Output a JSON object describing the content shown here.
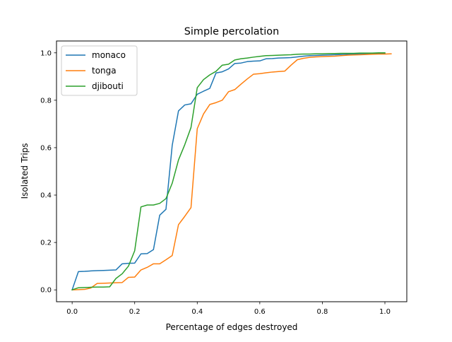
{
  "chart_data": {
    "type": "line",
    "title": "Simple percolation",
    "xlabel": "Percentage of edges destroyed",
    "ylabel": "Isolated Trips",
    "xlim": [
      -0.05,
      1.07
    ],
    "ylim": [
      -0.05,
      1.05
    ],
    "xticks": [
      0.0,
      0.2,
      0.4,
      0.6,
      0.8,
      1.0
    ],
    "xtick_labels": [
      "0.0",
      "0.2",
      "0.4",
      "0.6",
      "0.8",
      "1.0"
    ],
    "yticks": [
      0.0,
      0.2,
      0.4,
      0.6,
      0.8,
      1.0
    ],
    "ytick_labels": [
      "0.0",
      "0.2",
      "0.4",
      "0.6",
      "0.8",
      "1.0"
    ],
    "grid": false,
    "legend_position": "upper-left",
    "series": [
      {
        "name": "monaco",
        "color": "#1f77b4",
        "x": [
          0.0,
          0.02,
          0.04,
          0.06,
          0.08,
          0.1,
          0.12,
          0.14,
          0.16,
          0.18,
          0.2,
          0.22,
          0.24,
          0.26,
          0.28,
          0.3,
          0.32,
          0.34,
          0.36,
          0.38,
          0.4,
          0.42,
          0.44,
          0.46,
          0.48,
          0.5,
          0.52,
          0.54,
          0.56,
          0.58,
          0.6,
          0.62,
          0.64,
          0.66,
          0.68,
          0.7,
          0.72,
          0.74,
          0.76,
          0.78,
          0.8,
          0.82,
          0.84,
          0.86,
          0.88,
          0.9,
          0.92,
          0.94,
          0.96,
          0.98,
          1.0
        ],
        "y": [
          0.0,
          0.077,
          0.078,
          0.08,
          0.081,
          0.082,
          0.083,
          0.084,
          0.11,
          0.112,
          0.113,
          0.152,
          0.153,
          0.17,
          0.315,
          0.34,
          0.61,
          0.755,
          0.78,
          0.785,
          0.825,
          0.838,
          0.85,
          0.915,
          0.92,
          0.932,
          0.955,
          0.957,
          0.963,
          0.965,
          0.966,
          0.975,
          0.976,
          0.978,
          0.979,
          0.98,
          0.983,
          0.986,
          0.988,
          0.989,
          0.99,
          0.991,
          0.992,
          0.993,
          0.994,
          0.995,
          0.996,
          0.996,
          0.997,
          0.998,
          0.998
        ]
      },
      {
        "name": "tonga",
        "color": "#ff7f0e",
        "x": [
          0.0,
          0.02,
          0.04,
          0.06,
          0.08,
          0.1,
          0.12,
          0.14,
          0.16,
          0.18,
          0.2,
          0.22,
          0.24,
          0.26,
          0.28,
          0.3,
          0.32,
          0.34,
          0.36,
          0.38,
          0.4,
          0.42,
          0.44,
          0.46,
          0.48,
          0.5,
          0.52,
          0.54,
          0.56,
          0.58,
          0.6,
          0.62,
          0.64,
          0.66,
          0.68,
          0.7,
          0.72,
          0.74,
          0.76,
          0.78,
          0.8,
          0.82,
          0.84,
          0.86,
          0.88,
          0.9,
          0.92,
          0.94,
          0.96,
          0.98,
          1.0,
          1.02
        ],
        "y": [
          0.0,
          0.001,
          0.002,
          0.008,
          0.027,
          0.028,
          0.029,
          0.03,
          0.031,
          0.053,
          0.054,
          0.084,
          0.095,
          0.11,
          0.11,
          0.127,
          0.145,
          0.275,
          0.31,
          0.347,
          0.68,
          0.742,
          0.782,
          0.79,
          0.8,
          0.836,
          0.845,
          0.868,
          0.89,
          0.91,
          0.912,
          0.916,
          0.919,
          0.921,
          0.923,
          0.948,
          0.971,
          0.977,
          0.981,
          0.983,
          0.984,
          0.985,
          0.986,
          0.988,
          0.99,
          0.991,
          0.992,
          0.993,
          0.994,
          0.995,
          0.995,
          0.996
        ]
      },
      {
        "name": "djibouti",
        "color": "#2ca02c",
        "x": [
          0.0,
          0.02,
          0.04,
          0.06,
          0.08,
          0.1,
          0.12,
          0.14,
          0.16,
          0.18,
          0.2,
          0.22,
          0.24,
          0.26,
          0.28,
          0.3,
          0.32,
          0.34,
          0.36,
          0.38,
          0.4,
          0.42,
          0.44,
          0.46,
          0.48,
          0.5,
          0.52,
          0.54,
          0.56,
          0.58,
          0.6,
          0.62,
          0.64,
          0.66,
          0.68,
          0.7,
          0.72,
          0.74,
          0.76,
          0.78,
          0.8,
          0.82,
          0.84,
          0.86,
          0.88,
          0.9,
          0.92,
          0.94,
          0.96,
          0.98,
          1.0
        ],
        "y": [
          0.0,
          0.009,
          0.01,
          0.011,
          0.012,
          0.012,
          0.013,
          0.048,
          0.068,
          0.1,
          0.165,
          0.35,
          0.358,
          0.358,
          0.365,
          0.385,
          0.45,
          0.548,
          0.612,
          0.685,
          0.853,
          0.887,
          0.907,
          0.922,
          0.948,
          0.952,
          0.97,
          0.975,
          0.978,
          0.982,
          0.985,
          0.988,
          0.989,
          0.99,
          0.991,
          0.992,
          0.994,
          0.995,
          0.995,
          0.996,
          0.996,
          0.997,
          0.997,
          0.998,
          0.998,
          0.998,
          0.999,
          0.999,
          0.999,
          1.0,
          1.0
        ]
      }
    ]
  }
}
